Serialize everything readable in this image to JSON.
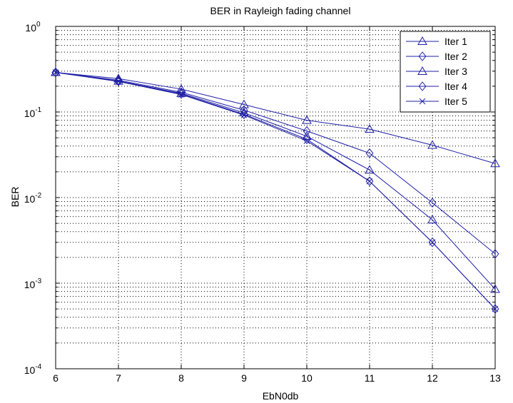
{
  "chart_data": {
    "type": "line",
    "title": "BER in Rayleigh fading channel",
    "xlabel": "EbN0db",
    "ylabel": "BER",
    "xlim": [
      6,
      13
    ],
    "ylim": [
      0.0001,
      1
    ],
    "yscale": "log",
    "grid": true,
    "legend_position": "top-right",
    "line_color": "#1f1fa6",
    "x": [
      6,
      7,
      8,
      9,
      10,
      11,
      12,
      13
    ],
    "x_tick_labels": [
      "6",
      "7",
      "8",
      "9",
      "10",
      "11",
      "12",
      "13"
    ],
    "y_tick_labels": [
      {
        "value": 1,
        "base": "10",
        "exp": "0"
      },
      {
        "value": 0.1,
        "base": "10",
        "exp": "-1"
      },
      {
        "value": 0.01,
        "base": "10",
        "exp": "-2"
      },
      {
        "value": 0.001,
        "base": "10",
        "exp": "-3"
      },
      {
        "value": 0.0001,
        "base": "10",
        "exp": "-4"
      }
    ],
    "series": [
      {
        "name": "Iter 1",
        "marker": "triangle",
        "values": [
          0.29,
          0.245,
          0.185,
          0.122,
          0.08,
          0.063,
          0.041,
          0.025
        ]
      },
      {
        "name": "Iter 2",
        "marker": "diamond",
        "values": [
          0.29,
          0.235,
          0.17,
          0.105,
          0.06,
          0.033,
          0.0087,
          0.0022
        ]
      },
      {
        "name": "Iter 3",
        "marker": "triangle",
        "values": [
          0.29,
          0.23,
          0.165,
          0.098,
          0.052,
          0.021,
          0.0055,
          0.00085
        ]
      },
      {
        "name": "Iter 4",
        "marker": "diamond",
        "values": [
          0.29,
          0.228,
          0.162,
          0.094,
          0.048,
          0.0155,
          0.003,
          0.0005
        ]
      },
      {
        "name": "Iter 5",
        "marker": "x",
        "values": [
          0.29,
          0.227,
          0.16,
          0.092,
          0.046,
          0.0155,
          0.003,
          0.0005
        ]
      }
    ]
  }
}
